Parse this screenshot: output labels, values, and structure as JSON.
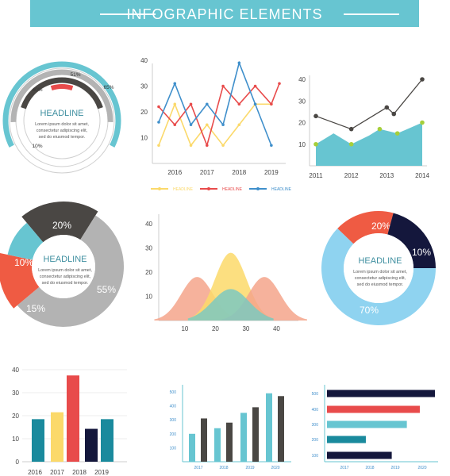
{
  "banner": {
    "title": "INFOGRAPHIC ELEMENTS"
  },
  "colors": {
    "teal": "#67c5d1",
    "yellow": "#fbd96a",
    "red": "#e84b4b",
    "blue": "#3f8fcb",
    "dark": "#4a4744",
    "gray": "#b3b3b3",
    "navy": "#14173c",
    "orange": "#ef5b43",
    "lightblue": "#8fd3f0",
    "peach": "#f5a58b"
  },
  "common": {
    "headline": "HEADLINE",
    "lorem": [
      "Lorem ipsum dolor sit amet,",
      "consectetur adipiscing elit,",
      "sed do eiusmod tempor."
    ]
  },
  "chart_data": [
    {
      "id": "radial",
      "type": "radial-bar",
      "values": [
        {
          "label": "65%",
          "value": 65,
          "color": "#67c5d1"
        },
        {
          "label": "51%",
          "value": 51,
          "color": "#b3b3b3"
        },
        {
          "label": "40%",
          "value": 40,
          "color": "#4a4744"
        },
        {
          "label": "10%",
          "value": 10,
          "color": "#e84b4b"
        }
      ]
    },
    {
      "id": "multiline",
      "type": "line",
      "x": [
        2015.5,
        2016,
        2016.5,
        2017,
        2017.5,
        2018,
        2018.5,
        2019,
        2019.25
      ],
      "xticks": [
        "2016",
        "2017",
        "2018",
        "2019"
      ],
      "yticks": [
        "10",
        "20",
        "30",
        "40"
      ],
      "ylim": [
        0,
        40
      ],
      "series": [
        {
          "name": "HEADLINE",
          "color": "#fbd96a",
          "values": [
            7,
            23,
            7,
            15,
            7,
            15,
            23,
            23,
            null
          ]
        },
        {
          "name": "HEADLINE",
          "color": "#e84b4b",
          "values": [
            22,
            15,
            23,
            7,
            30,
            23,
            30,
            23,
            31
          ]
        },
        {
          "name": "HEADLINE",
          "color": "#3f8fcb",
          "values": [
            16,
            31,
            15,
            23,
            15,
            39,
            23,
            7,
            null
          ]
        }
      ]
    },
    {
      "id": "arealine",
      "type": "area+line",
      "x": [
        "2011",
        "2012",
        "2013",
        "2014"
      ],
      "yticks": [
        "10",
        "20",
        "30",
        "40"
      ],
      "ylim": [
        0,
        40
      ],
      "area": {
        "x": [
          2011,
          2011.5,
          2012,
          2012.5,
          2012.8,
          2013.3,
          2014
        ],
        "values": [
          10,
          15,
          10,
          14,
          17,
          15,
          20
        ]
      },
      "line": {
        "x": [
          2011,
          2012,
          2013,
          2013.2,
          2014
        ],
        "values": [
          23,
          17,
          27,
          24,
          40
        ]
      }
    },
    {
      "id": "pie-donut",
      "type": "pie",
      "slices": [
        {
          "label": "20%",
          "value": 20,
          "color": "#4a4744"
        },
        {
          "label": "55%",
          "value": 55,
          "color": "#b3b3b3"
        },
        {
          "label": "15%",
          "value": 15,
          "color": "#ef5b43"
        },
        {
          "label": "10%",
          "value": 10,
          "color": "#67c5d1"
        }
      ]
    },
    {
      "id": "bells",
      "type": "area",
      "xticks": [
        "10",
        "20",
        "30",
        "40"
      ],
      "yticks": [
        "10",
        "20",
        "30",
        "40"
      ],
      "series": [
        {
          "color": "#f5a58b",
          "center": 14,
          "height": 18
        },
        {
          "color": "#fbd96a",
          "center": 25,
          "height": 28
        },
        {
          "color": "#f5a58b",
          "center": 36,
          "height": 18
        },
        {
          "color": "#7dc9c0",
          "center": 25,
          "height": 13
        }
      ]
    },
    {
      "id": "ring",
      "type": "pie",
      "slices": [
        {
          "label": "20%",
          "value": 20,
          "color": "#ef5b43"
        },
        {
          "label": "10%",
          "value": 10,
          "color": "#14173c"
        },
        {
          "label": "70%",
          "value": 70,
          "color": "#8fd3f0"
        }
      ]
    },
    {
      "id": "bars1",
      "type": "bar",
      "categories": [
        "2016",
        "2017",
        "2018",
        "2019"
      ],
      "yticks": [
        "0",
        "10",
        "20",
        "30",
        "40"
      ],
      "ylim": [
        0,
        40
      ],
      "bars": [
        {
          "x": 2016,
          "value": 18.5,
          "color": "#1a8a9d"
        },
        {
          "x": 2017,
          "value": 21.5,
          "color": "#fbd96a"
        },
        {
          "x": 2018,
          "value": 37.5,
          "color": "#e84b4b"
        },
        {
          "x": 2019,
          "value": 14.3,
          "color": "#14173c"
        },
        {
          "x": 2019.5,
          "value": 18.5,
          "color": "#1a8a9d"
        }
      ]
    },
    {
      "id": "bars2",
      "type": "bar",
      "categories": [
        "2017",
        "2018",
        "2019",
        "2020"
      ],
      "yticks": [
        "100",
        "200",
        "300",
        "400",
        "500"
      ],
      "ylim": [
        0,
        500
      ],
      "series": [
        {
          "color": "#67c5d1",
          "values": [
            200,
            240,
            350,
            490
          ]
        },
        {
          "color": "#4a4744",
          "values": [
            310,
            280,
            390,
            470
          ]
        }
      ]
    },
    {
      "id": "hbars",
      "type": "bar",
      "yticks": [
        "100",
        "200",
        "300",
        "400",
        "500"
      ],
      "xticks": [
        "2017",
        "2018",
        "2019",
        "2020"
      ],
      "bars": [
        {
          "value": 1.0,
          "color": "#14173c"
        },
        {
          "value": 0.86,
          "color": "#e84b4b"
        },
        {
          "value": 0.74,
          "color": "#67c5d1"
        },
        {
          "value": 0.36,
          "color": "#1a8a9d"
        },
        {
          "value": 0.6,
          "color": "#14173c"
        }
      ]
    }
  ]
}
